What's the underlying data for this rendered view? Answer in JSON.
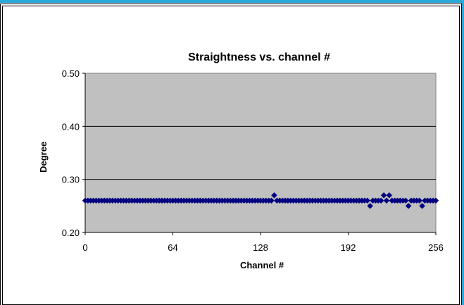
{
  "chart_data": {
    "type": "scatter",
    "title": "Straightness vs. channel #",
    "xlabel": "Channel #",
    "ylabel": "Degree",
    "xlim": [
      0,
      256
    ],
    "ylim": [
      0.2,
      0.5
    ],
    "xticks": [
      "0",
      "64",
      "128",
      "192",
      "256"
    ],
    "yticks": [
      "0.20",
      "0.30",
      "0.40",
      "0.50"
    ],
    "grid": "horizontal",
    "legend": "none",
    "plot_background": "#c0c0c0",
    "series_color": "#000080",
    "series": [
      {
        "x": [
          0,
          2,
          4,
          6,
          8,
          10,
          12,
          14,
          16,
          18,
          20,
          22,
          24,
          26,
          28,
          30,
          32,
          34,
          36,
          38,
          40,
          42,
          44,
          46,
          48,
          50,
          52,
          54,
          56,
          58,
          60,
          62,
          64,
          66,
          68,
          70,
          72,
          74,
          76,
          78,
          80,
          82,
          84,
          86,
          88,
          90,
          92,
          94,
          96,
          98,
          100,
          102,
          104,
          106,
          108,
          110,
          112,
          114,
          116,
          118,
          120,
          122,
          124,
          126,
          128,
          130,
          132,
          134,
          136,
          138,
          140,
          142,
          144,
          146,
          148,
          150,
          152,
          154,
          156,
          158,
          160,
          162,
          164,
          166,
          168,
          170,
          172,
          174,
          176,
          178,
          180,
          182,
          184,
          186,
          188,
          190,
          192,
          194,
          196,
          198,
          200,
          202,
          204,
          206,
          208,
          210,
          212,
          214,
          216,
          218,
          220,
          222,
          224,
          226,
          228,
          230,
          232,
          234,
          236,
          238,
          240,
          242,
          244,
          246,
          248,
          250,
          252,
          254,
          256
        ],
        "y": [
          0.26,
          0.26,
          0.26,
          0.26,
          0.26,
          0.26,
          0.26,
          0.26,
          0.26,
          0.26,
          0.26,
          0.26,
          0.26,
          0.26,
          0.26,
          0.26,
          0.26,
          0.26,
          0.26,
          0.26,
          0.26,
          0.26,
          0.26,
          0.26,
          0.26,
          0.26,
          0.26,
          0.26,
          0.26,
          0.26,
          0.26,
          0.26,
          0.26,
          0.26,
          0.26,
          0.26,
          0.26,
          0.26,
          0.26,
          0.26,
          0.26,
          0.26,
          0.26,
          0.26,
          0.26,
          0.26,
          0.26,
          0.26,
          0.26,
          0.26,
          0.26,
          0.26,
          0.26,
          0.26,
          0.26,
          0.26,
          0.26,
          0.26,
          0.26,
          0.26,
          0.26,
          0.26,
          0.26,
          0.26,
          0.26,
          0.26,
          0.26,
          0.26,
          0.26,
          0.27,
          0.26,
          0.26,
          0.26,
          0.26,
          0.26,
          0.26,
          0.26,
          0.26,
          0.26,
          0.26,
          0.26,
          0.26,
          0.26,
          0.26,
          0.26,
          0.26,
          0.26,
          0.26,
          0.26,
          0.26,
          0.26,
          0.26,
          0.26,
          0.26,
          0.26,
          0.26,
          0.26,
          0.26,
          0.26,
          0.26,
          0.26,
          0.26,
          0.26,
          0.26,
          0.25,
          0.26,
          0.26,
          0.26,
          0.26,
          0.27,
          0.26,
          0.27,
          0.26,
          0.26,
          0.26,
          0.26,
          0.26,
          0.26,
          0.25,
          0.26,
          0.26,
          0.26,
          0.26,
          0.25,
          0.26,
          0.26,
          0.26,
          0.26,
          0.26
        ]
      }
    ]
  }
}
